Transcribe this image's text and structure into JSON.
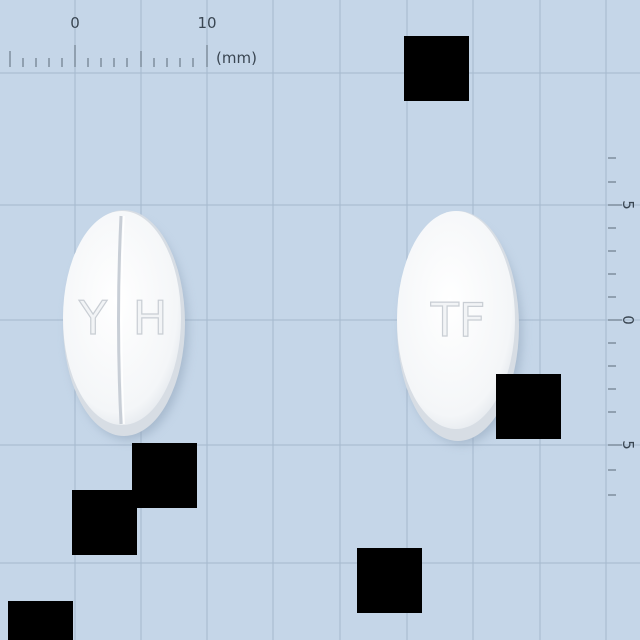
{
  "background_color": "#c5d6e8",
  "grid_color": "#9fb3c9",
  "ruler": {
    "label_zero": "0",
    "label_ten": "10",
    "unit": "(mm)",
    "v_label_top": "5",
    "v_label_mid": "0",
    "v_label_bottom": "5"
  },
  "tablets": [
    {
      "imprint_left": "Y",
      "imprint_right": "H",
      "scored": true,
      "color": "#ffffff"
    },
    {
      "imprint": "TF",
      "scored": false,
      "color": "#ffffff"
    }
  ],
  "redaction_boxes": 6
}
